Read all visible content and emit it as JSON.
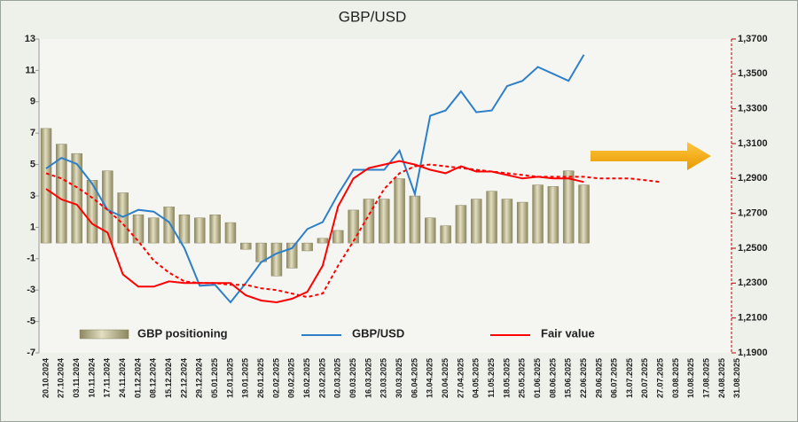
{
  "chart_data": {
    "type": "bar",
    "title": "GBP/USD",
    "categories": [
      "20.10.2024",
      "27.10.2024",
      "03.11.2024",
      "10.11.2024",
      "17.11.2024",
      "24.11.2024",
      "01.12.2024",
      "08.12.2024",
      "15.12.2024",
      "22.12.2024",
      "29.12.2024",
      "05.01.2025",
      "12.01.2025",
      "19.01.2025",
      "26.01.2025",
      "02.02.2025",
      "09.02.2025",
      "16.02.2025",
      "23.02.2025",
      "02.03.2025",
      "09.03.2025",
      "16.03.2025",
      "23.03.2025",
      "30.03.2025",
      "06.04.2025",
      "13.04.2025",
      "20.04.2025",
      "27.04.2025",
      "04.05.2025",
      "11.05.2025",
      "18.05.2025",
      "25.05.2025",
      "01.06.2025",
      "08.06.2025",
      "15.06.2025",
      "22.06.2025",
      "29.06.2025",
      "06.07.2025",
      "13.07.2025",
      "20.07.2025",
      "27.07.2025",
      "03.08.2025",
      "10.08.2025",
      "17.08.2025",
      "24.08.2025",
      "31.08.2025"
    ],
    "series": [
      {
        "name": "GBP positioning",
        "type": "bar",
        "color": "#b5b08a",
        "values": [
          7.3,
          6.3,
          5.7,
          4.0,
          4.6,
          3.2,
          1.8,
          1.6,
          2.3,
          1.8,
          1.6,
          1.8,
          1.3,
          -0.4,
          -1.2,
          -2.1,
          -1.6,
          -0.5,
          0.3,
          0.8,
          2.1,
          2.8,
          2.8,
          4.1,
          3.0,
          1.6,
          1.1,
          2.4,
          2.8,
          3.3,
          2.8,
          2.6,
          3.7,
          3.6,
          4.6,
          3.7,
          null,
          null,
          null,
          null,
          null,
          null,
          null,
          null,
          null,
          null
        ]
      },
      {
        "name": "GBP/USD",
        "type": "line",
        "axis": "y2",
        "color": "#2e7fc8",
        "values": [
          1.2957,
          1.3018,
          1.2983,
          1.287,
          1.272,
          1.268,
          1.272,
          1.271,
          1.265,
          1.25,
          1.2285,
          1.229,
          1.219,
          1.23,
          1.242,
          1.247,
          1.25,
          1.261,
          1.265,
          1.281,
          1.295,
          1.295,
          1.295,
          1.306,
          1.281,
          1.326,
          1.329,
          1.34,
          1.328,
          1.329,
          1.343,
          1.346,
          1.354,
          1.35,
          1.346,
          1.361,
          null,
          null,
          null,
          null,
          null,
          null,
          null,
          null,
          null,
          null
        ]
      },
      {
        "name": "Fair value",
        "type": "line",
        "axis": "y2",
        "color": "#ff0000",
        "values": [
          1.284,
          1.278,
          1.275,
          1.264,
          1.259,
          1.235,
          1.228,
          1.228,
          1.231,
          1.23,
          1.23,
          1.23,
          1.23,
          1.223,
          1.22,
          1.219,
          1.221,
          1.225,
          1.24,
          1.274,
          1.29,
          1.296,
          1.298,
          1.3,
          1.298,
          1.295,
          1.293,
          1.297,
          1.294,
          1.294,
          1.292,
          1.29,
          1.291,
          1.29,
          1.29,
          1.288,
          null,
          null,
          null,
          null,
          null,
          null,
          null,
          null,
          null,
          null
        ]
      },
      {
        "type": "line",
        "axis": "y2",
        "color": "#ff0000",
        "dashed": true,
        "values": [
          1.293,
          1.29,
          1.285,
          1.279,
          1.272,
          1.264,
          1.254,
          1.243,
          1.236,
          1.231,
          1.23,
          1.23,
          1.229,
          1.229,
          1.227,
          1.226,
          1.224,
          1.222,
          1.224,
          1.24,
          1.254,
          1.269,
          1.284,
          1.293,
          1.297,
          1.298,
          1.297,
          1.296,
          1.295,
          1.294,
          1.293,
          1.292,
          1.291,
          1.291,
          1.291,
          1.291,
          1.29,
          1.29,
          1.29,
          1.289,
          1.288,
          null,
          null,
          null,
          null,
          null
        ]
      }
    ],
    "ylim": [
      -7,
      13
    ],
    "yticks": [
      13,
      11,
      9,
      7,
      5,
      3,
      1,
      -1,
      -3,
      -5,
      -7
    ],
    "y2lim": [
      1.19,
      1.37
    ],
    "y2ticks": [
      {
        "value": 1.37,
        "label": "1,3700"
      },
      {
        "value": 1.35,
        "label": "1,3500"
      },
      {
        "value": 1.33,
        "label": "1,3300"
      },
      {
        "value": 1.31,
        "label": "1,3100"
      },
      {
        "value": 1.29,
        "label": "1,2900"
      },
      {
        "value": 1.27,
        "label": "1,2700"
      },
      {
        "value": 1.25,
        "label": "1,2500"
      },
      {
        "value": 1.23,
        "label": "1,2300"
      },
      {
        "value": 1.21,
        "label": "1,2100"
      },
      {
        "value": 1.19,
        "label": "1,1900"
      }
    ],
    "legend": "bottom"
  }
}
